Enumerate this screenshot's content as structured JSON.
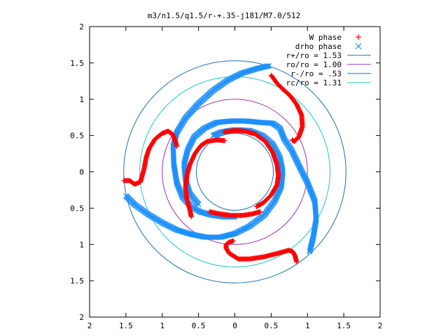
{
  "chart_data": {
    "type": "scatter",
    "title": "m3/n1.5/q1.5/r-+.35-j181/M7.0/512",
    "xlabel": "",
    "ylabel": "",
    "xlim": [
      -2,
      2
    ],
    "ylim": [
      -2,
      2
    ],
    "x_ticks": [
      -2,
      -1.5,
      -1,
      -0.5,
      0,
      0.5,
      1,
      1.5,
      2
    ],
    "y_ticks": [
      -2,
      -1.5,
      -1,
      -0.5,
      0,
      0.5,
      1,
      1.5,
      2
    ],
    "x_tick_labels": [
      "2",
      "1.5",
      "1",
      "0.5",
      "0",
      "0.5",
      "1",
      "1.5",
      "2"
    ],
    "y_tick_labels": [
      "2",
      "1.5",
      "1",
      "0.5",
      "0",
      "0.5",
      "1",
      "1.5",
      "2"
    ],
    "grid": false,
    "legend_position": "top-right",
    "series": [
      {
        "name": "W phase",
        "marker": "plus",
        "color": "#ff0000",
        "arms": [
          [
            [
              0.5,
              1.33
            ],
            [
              0.53,
              1.29
            ],
            [
              0.58,
              1.22
            ],
            [
              0.66,
              1.14
            ],
            [
              0.76,
              1.05
            ],
            [
              0.85,
              0.93
            ],
            [
              0.92,
              0.78
            ],
            [
              0.93,
              0.62
            ],
            [
              0.88,
              0.48
            ],
            [
              0.82,
              0.42
            ],
            [
              0.8,
              0.43
            ],
            [
              0.79,
              0.44
            ]
          ],
          [
            [
              -1.53,
              -0.12
            ],
            [
              -1.45,
              -0.12
            ],
            [
              -1.38,
              -0.17
            ],
            [
              -1.3,
              -0.14
            ],
            [
              -1.25,
              0.04
            ],
            [
              -1.22,
              0.2
            ],
            [
              -1.18,
              0.32
            ],
            [
              -1.1,
              0.45
            ],
            [
              -1.0,
              0.53
            ],
            [
              -0.92,
              0.56
            ],
            [
              -0.86,
              0.52
            ],
            [
              -0.82,
              0.43
            ],
            [
              -0.8,
              0.35
            ]
          ],
          [
            [
              0.85,
              -1.24
            ],
            [
              0.83,
              -1.16
            ],
            [
              0.8,
              -1.1
            ],
            [
              0.74,
              -1.08
            ],
            [
              0.6,
              -1.12
            ],
            [
              0.4,
              -1.17
            ],
            [
              0.2,
              -1.2
            ],
            [
              0.05,
              -1.2
            ],
            [
              -0.08,
              -1.12
            ],
            [
              -0.12,
              -1.05
            ],
            [
              -0.12,
              -1.0
            ],
            [
              -0.08,
              -0.97
            ],
            [
              -0.02,
              -0.95
            ]
          ],
          [
            [
              -0.6,
              -0.62
            ],
            [
              -0.62,
              -0.52
            ],
            [
              -0.66,
              -0.38
            ],
            [
              -0.68,
              -0.22
            ],
            [
              -0.66,
              -0.05
            ],
            [
              -0.62,
              0.1
            ],
            [
              -0.55,
              0.25
            ],
            [
              -0.47,
              0.36
            ],
            [
              -0.38,
              0.42
            ],
            [
              -0.25,
              0.44
            ],
            [
              -0.14,
              0.43
            ]
          ],
          [
            [
              -0.15,
              0.55
            ],
            [
              0.0,
              0.57
            ],
            [
              0.14,
              0.56
            ],
            [
              0.28,
              0.52
            ],
            [
              0.42,
              0.42
            ],
            [
              0.52,
              0.27
            ],
            [
              0.58,
              0.1
            ],
            [
              0.6,
              -0.05
            ],
            [
              0.58,
              -0.18
            ],
            [
              0.5,
              -0.32
            ],
            [
              0.4,
              -0.42
            ],
            [
              0.3,
              -0.48
            ]
          ],
          [
            [
              0.35,
              -0.55
            ],
            [
              0.24,
              -0.58
            ],
            [
              0.1,
              -0.6
            ],
            [
              -0.05,
              -0.6
            ],
            [
              -0.2,
              -0.58
            ],
            [
              -0.35,
              -0.55
            ]
          ]
        ]
      },
      {
        "name": "drho phase",
        "marker": "cross",
        "color": "#1e90ff",
        "arms": [
          [
            [
              0.47,
              1.46
            ],
            [
              0.3,
              1.42
            ],
            [
              0.1,
              1.36
            ],
            [
              -0.1,
              1.26
            ],
            [
              -0.3,
              1.12
            ],
            [
              -0.5,
              0.94
            ],
            [
              -0.68,
              0.74
            ],
            [
              -0.8,
              0.54
            ],
            [
              -0.85,
              0.35
            ],
            [
              -0.84,
              0.1
            ],
            [
              -0.8,
              -0.15
            ],
            [
              -0.72,
              -0.35
            ],
            [
              -0.6,
              -0.48
            ],
            [
              -0.48,
              -0.55
            ],
            [
              -0.3,
              -0.6
            ],
            [
              -0.15,
              -0.62
            ],
            [
              0.0,
              -0.62
            ]
          ],
          [
            [
              1.03,
              -1.1
            ],
            [
              1.08,
              -0.9
            ],
            [
              1.12,
              -0.65
            ],
            [
              1.1,
              -0.4
            ],
            [
              1.0,
              -0.15
            ],
            [
              0.9,
              0.05
            ],
            [
              0.78,
              0.3
            ],
            [
              0.68,
              0.45
            ],
            [
              0.62,
              0.6
            ],
            [
              0.52,
              0.67
            ],
            [
              0.35,
              0.68
            ],
            [
              0.15,
              0.7
            ],
            [
              -0.05,
              0.7
            ],
            [
              -0.25,
              0.68
            ],
            [
              -0.42,
              0.6
            ],
            [
              -0.56,
              0.48
            ],
            [
              -0.65,
              0.3
            ],
            [
              -0.7,
              0.1
            ],
            [
              -0.68,
              -0.1
            ],
            [
              -0.62,
              -0.3
            ],
            [
              -0.5,
              -0.45
            ]
          ],
          [
            [
              -1.5,
              -0.33
            ],
            [
              -1.38,
              -0.45
            ],
            [
              -1.2,
              -0.58
            ],
            [
              -1.0,
              -0.7
            ],
            [
              -0.8,
              -0.8
            ],
            [
              -0.6,
              -0.86
            ],
            [
              -0.4,
              -0.9
            ],
            [
              -0.2,
              -0.9
            ],
            [
              0.0,
              -0.85
            ],
            [
              0.2,
              -0.75
            ],
            [
              0.4,
              -0.6
            ],
            [
              0.55,
              -0.4
            ],
            [
              0.64,
              -0.2
            ],
            [
              0.66,
              0.0
            ],
            [
              0.62,
              0.2
            ],
            [
              0.52,
              0.38
            ],
            [
              0.38,
              0.5
            ],
            [
              0.2,
              0.57
            ],
            [
              0.0,
              0.58
            ],
            [
              -0.18,
              0.55
            ],
            [
              -0.3,
              0.5
            ]
          ]
        ]
      },
      {
        "name": "r+/ro = 1.53",
        "type": "circle",
        "radius": 1.53,
        "color": "#1e6eb4"
      },
      {
        "name": "ro/ro = 1.00",
        "type": "circle",
        "radius": 1.0,
        "color": "#9b30c0"
      },
      {
        "name": "r-/ro = .53",
        "type": "circle",
        "radius": 0.53,
        "color": "#1e6eb4"
      },
      {
        "name": "rc/ro = 1.31",
        "type": "circle",
        "radius": 1.31,
        "color": "#20c8c8"
      }
    ]
  }
}
